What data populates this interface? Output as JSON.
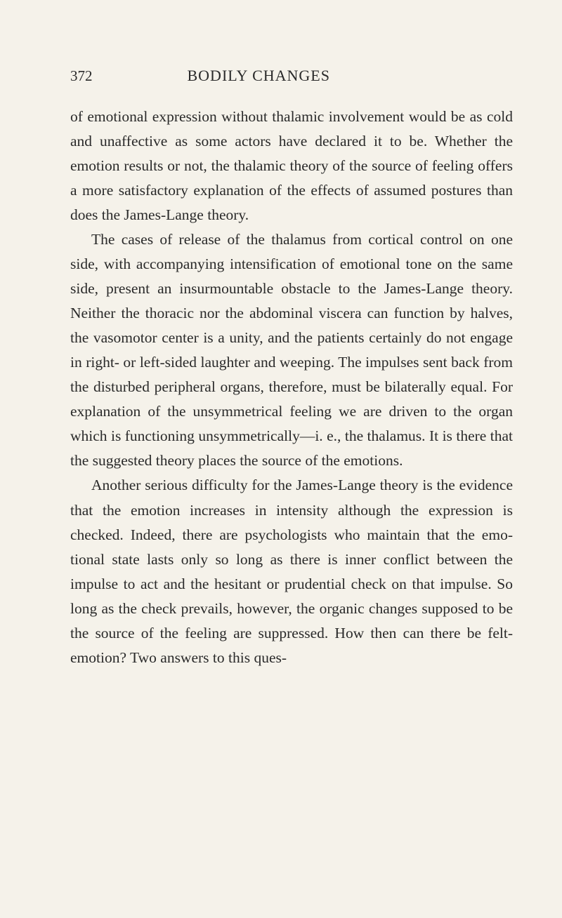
{
  "header": {
    "pageNumber": "372",
    "title": "BODILY CHANGES"
  },
  "paragraphs": {
    "p1": "of emotional expression without thalamic involvement would be as cold and unaffective as some actors have declared it to be. Whether the emotion results or not, the thalamic theory of the source of feeling offers a more satisfactory explanation of the effects of assumed postures than does the James-Lange theory.",
    "p2": "The cases of release of the thalamus from cortical control on one side, with accompanying intensification of emotional tone on the same side, present an insur­mountable obstacle to the James-Lange theory. Neither the thoracic nor the abdominal viscera can function by halves, the vasomotor center is a unity, and the patients certainly do not engage in right- or left-sided laughter and weeping. The impulses sent back from the disturbed peripheral organs, therefore, must be bilaterally equal. For explanation of the unsymmetrical feeling we are driven to the organ which is functioning unsymmetrically—i. e., the thalamus. It is there that the suggested theory places the source of the emotions.",
    "p3": "Another serious difficulty for the James-Lange theory is the evidence that the emotion increases in intensity although the expression is checked. Indeed, there are psychologists who maintain that the emo­tional state lasts only so long as there is inner conflict between the impulse to act and the hesitant or pru­dential check on that impulse. So long as the check prevails, however, the organic changes supposed to be the source of the feeling are suppressed. How then can there be felt-emotion? Two answers to this ques-"
  }
}
